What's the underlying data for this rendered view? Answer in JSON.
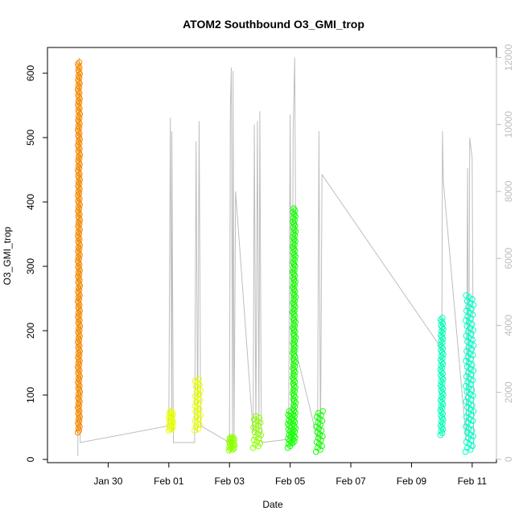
{
  "chart_data": {
    "type": "scatter",
    "title": "ATOM2 Southbound O3_GMI_trop",
    "xlabel": "Date",
    "ylabel": "O3_GMI_trop",
    "x_tick_labels": [
      "Jan 30",
      "Feb 01",
      "Feb 03",
      "Feb 05",
      "Feb 07",
      "Feb 09",
      "Feb 11"
    ],
    "x_tick_days": [
      30,
      32,
      34,
      36,
      38,
      40,
      42
    ],
    "xlim_days": [
      28.0,
      42.8
    ],
    "ylim": [
      -5,
      640
    ],
    "y_ticks": [
      0,
      100,
      200,
      300,
      400,
      500,
      600
    ],
    "y2lim": [
      -100,
      12300
    ],
    "y2_ticks": [
      0,
      2000,
      4000,
      6000,
      8000,
      10000,
      12000
    ],
    "grid": false,
    "legend": "none",
    "colors": {
      "altitude_line": "#bebebe",
      "axis": "#000000",
      "right_axis": "#bebebe"
    },
    "series": [
      {
        "day_start": 29.0,
        "day_end": 29.07,
        "ymin": 42,
        "ymax": 617,
        "color": "#f58a00"
      },
      {
        "day_start": 32.0,
        "day_end": 32.15,
        "ymin": 45,
        "ymax": 75,
        "color": "#e6ff00"
      },
      {
        "day_start": 32.85,
        "day_end": 33.05,
        "ymin": 45,
        "ymax": 125,
        "color": "#e6ff00"
      },
      {
        "day_start": 33.98,
        "day_end": 34.18,
        "ymin": 14,
        "ymax": 35,
        "color": "#8cff00"
      },
      {
        "day_start": 34.78,
        "day_end": 35.05,
        "ymin": 18,
        "ymax": 67,
        "color": "#8cff00"
      },
      {
        "day_start": 35.92,
        "day_end": 36.05,
        "ymin": 18,
        "ymax": 75,
        "color": "#13ff00"
      },
      {
        "day_start": 36.08,
        "day_end": 36.18,
        "ymin": 25,
        "ymax": 390,
        "color": "#13ff00"
      },
      {
        "day_start": 36.85,
        "day_end": 37.08,
        "ymin": 12,
        "ymax": 75,
        "color": "#13ff00"
      },
      {
        "day_start": 40.95,
        "day_end": 41.05,
        "ymin": 38,
        "ymax": 220,
        "color": "#00ffb6"
      },
      {
        "day_start": 41.78,
        "day_end": 42.05,
        "ymin": 12,
        "ymax": 255,
        "color": "#00ffc8"
      }
    ],
    "altitude_trace": [
      [
        29.0,
        100
      ],
      [
        29.05,
        12000
      ],
      [
        29.08,
        500
      ],
      [
        32.0,
        1000
      ],
      [
        32.05,
        10200
      ],
      [
        32.1,
        800
      ],
      [
        32.1,
        9800
      ],
      [
        32.15,
        500
      ],
      [
        32.85,
        500
      ],
      [
        32.9,
        9500
      ],
      [
        32.95,
        800
      ],
      [
        33.0,
        10100
      ],
      [
        33.05,
        1000
      ],
      [
        34.0,
        500
      ],
      [
        34.03,
        10500
      ],
      [
        34.06,
        11700
      ],
      [
        34.1,
        700
      ],
      [
        34.12,
        11600
      ],
      [
        34.15,
        600
      ],
      [
        34.2,
        8000
      ],
      [
        34.78,
        800
      ],
      [
        34.82,
        10000
      ],
      [
        34.87,
        600
      ],
      [
        34.92,
        10100
      ],
      [
        34.97,
        800
      ],
      [
        35.0,
        10400
      ],
      [
        35.05,
        500
      ],
      [
        35.95,
        600
      ],
      [
        36.0,
        10300
      ],
      [
        36.05,
        500
      ],
      [
        36.1,
        9900
      ],
      [
        36.15,
        12000
      ],
      [
        36.2,
        3200
      ],
      [
        36.9,
        600
      ],
      [
        36.95,
        9800
      ],
      [
        37.0,
        300
      ],
      [
        37.05,
        8500
      ],
      [
        41.0,
        3300
      ],
      [
        41.02,
        9800
      ],
      [
        41.05,
        8300
      ],
      [
        41.8,
        600
      ],
      [
        41.85,
        8700
      ],
      [
        41.88,
        500
      ],
      [
        41.92,
        9600
      ],
      [
        42.0,
        9000
      ],
      [
        42.05,
        300
      ]
    ]
  }
}
